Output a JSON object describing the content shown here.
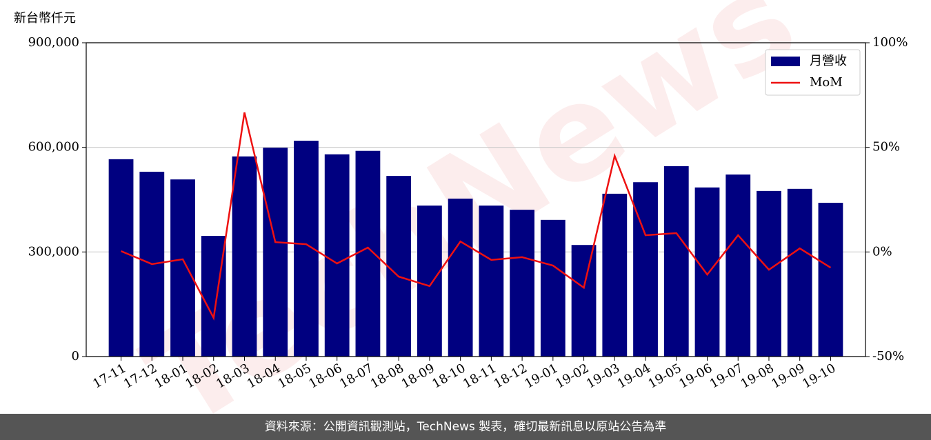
{
  "chart_data": {
    "type": "bar",
    "y_axis_label": "新台幣仟元",
    "watermark": "TechNews",
    "categories": [
      "17-11",
      "17-12",
      "18-01",
      "18-02",
      "18-03",
      "18-04",
      "18-05",
      "18-06",
      "18-07",
      "18-08",
      "18-09",
      "18-10",
      "18-11",
      "18-12",
      "19-01",
      "19-02",
      "19-03",
      "19-04",
      "19-05",
      "19-06",
      "19-07",
      "19-08",
      "19-09",
      "19-10"
    ],
    "series": [
      {
        "name": "月營收",
        "type": "bar",
        "color": "#000080",
        "values": [
          566000,
          530000,
          508000,
          346000,
          574000,
          599000,
          619000,
          580000,
          590000,
          518000,
          433000,
          453000,
          433000,
          421000,
          392000,
          320000,
          467000,
          500000,
          546000,
          485000,
          522000,
          475000,
          481000,
          441000
        ]
      },
      {
        "name": "MoM",
        "type": "line",
        "axis": "y2",
        "color": "#ee1111",
        "values": [
          0.4,
          -5.8,
          -3.5,
          -31.5,
          66.7,
          4.7,
          3.7,
          -5.5,
          2.1,
          -11.8,
          -16.3,
          5.0,
          -3.8,
          -2.5,
          -6.5,
          -17.1,
          45.9,
          8.0,
          9.0,
          -10.8,
          8.0,
          -8.5,
          1.7,
          -7.5
        ]
      }
    ],
    "ylim": [
      0,
      900000
    ],
    "yticks": [
      0,
      {
        "value": 300000,
        "label": "300,000"
      },
      {
        "value": 600000,
        "label": "600,000"
      },
      {
        "value": 900000,
        "label": "900,000"
      }
    ],
    "y2lim": [
      -50,
      100
    ],
    "y2ticks": [
      {
        "value": -50,
        "label": "-50%"
      },
      {
        "value": 0,
        "label": "0%"
      },
      {
        "value": 50,
        "label": "50%"
      },
      {
        "value": 100,
        "label": "100%"
      }
    ],
    "grid": true,
    "legend": "upper right",
    "source": "資料來源：公開資訊觀測站，TechNews 製表，確切最新訊息以原站公告為準"
  }
}
